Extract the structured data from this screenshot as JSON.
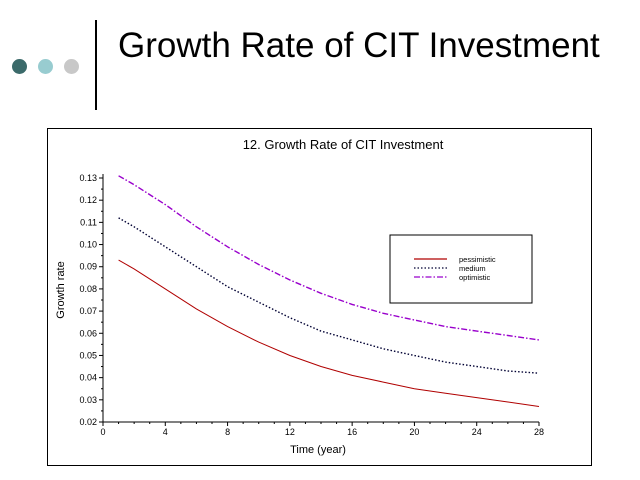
{
  "slide": {
    "title": "Growth Rate of CIT Investment",
    "bullet_colors": [
      "#3b6a6a",
      "#98ccd0",
      "#c8c8c8"
    ]
  },
  "chart_data": {
    "type": "line",
    "title": "12.  Growth Rate of CIT Investment",
    "xlabel": "Time (year)",
    "ylabel": "Growth rate",
    "xlim": [
      0,
      28
    ],
    "ylim": [
      0.02,
      0.13
    ],
    "x_ticks": [
      "0",
      "4",
      "8",
      "12",
      "16",
      "20",
      "24",
      "28"
    ],
    "y_ticks": [
      "0.02",
      "0.03",
      "0.04",
      "0.05",
      "0.06",
      "0.07",
      "0.08",
      "0.09",
      "0.10",
      "0.11",
      "0.12",
      "0.13"
    ],
    "legend_position": "right",
    "x": [
      1,
      2,
      4,
      6,
      8,
      10,
      12,
      14,
      16,
      18,
      20,
      22,
      24,
      26,
      28
    ],
    "series": [
      {
        "name": "pessimistic",
        "color": "#b00000",
        "style": "solid",
        "values": [
          0.093,
          0.089,
          0.08,
          0.071,
          0.063,
          0.056,
          0.05,
          0.045,
          0.041,
          0.038,
          0.035,
          0.033,
          0.031,
          0.029,
          0.027
        ]
      },
      {
        "name": "medium",
        "color": "#000033",
        "style": "dotted",
        "values": [
          0.112,
          0.108,
          0.099,
          0.09,
          0.081,
          0.074,
          0.067,
          0.061,
          0.057,
          0.053,
          0.05,
          0.047,
          0.045,
          0.043,
          0.042
        ]
      },
      {
        "name": "optimistic",
        "color": "#9900cc",
        "style": "dashdot",
        "values": [
          0.131,
          0.127,
          0.118,
          0.108,
          0.099,
          0.091,
          0.084,
          0.078,
          0.073,
          0.069,
          0.066,
          0.063,
          0.061,
          0.059,
          0.057
        ]
      }
    ]
  }
}
